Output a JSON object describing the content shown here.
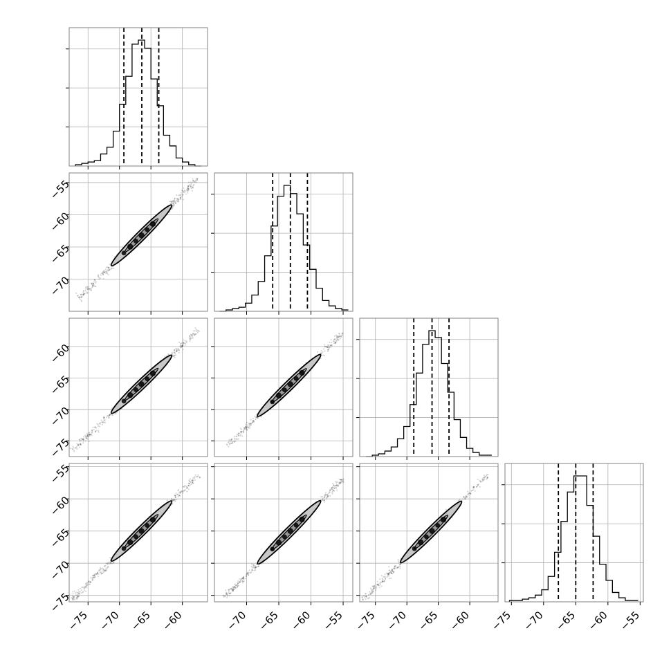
{
  "colors": {
    "ink": "#000000",
    "grid": "#b0b0b0",
    "frame": "#808080",
    "background": "#ffffff"
  },
  "chart_data": {
    "type": "corner",
    "title": "",
    "grid": true,
    "parameters": [
      {
        "index": 0,
        "range": [
          -78,
          -56
        ],
        "ticks": [
          -75,
          -70,
          -65,
          -60
        ],
        "tick_labels": [
          "−75",
          "−70",
          "−65",
          "−60"
        ],
        "quantiles": [
          -69.3,
          -66.45,
          -63.75
        ]
      },
      {
        "index": 1,
        "range": [
          -75,
          -53.5
        ],
        "ticks": [
          -70,
          -65,
          -60,
          -55
        ],
        "tick_labels": [
          "−70",
          "−65",
          "−60",
          "−55"
        ],
        "quantiles": [
          -65.95,
          -63.2,
          -60.55
        ]
      },
      {
        "index": 2,
        "range": [
          -77.5,
          -55.5
        ],
        "ticks": [
          -75,
          -70,
          -65,
          -60
        ],
        "tick_labels": [
          "−75",
          "−70",
          "−65",
          "−60"
        ],
        "quantiles": [
          -68.9,
          -66.0,
          -63.3
        ]
      },
      {
        "index": 3,
        "range": [
          -76,
          -54.5
        ],
        "ticks": [
          -75,
          -70,
          -65,
          -60,
          -55
        ],
        "tick_labels": [
          "−75",
          "−70",
          "−65",
          "−60",
          "−55"
        ],
        "quantiles": [
          -67.7,
          -65.0,
          -62.3
        ]
      }
    ],
    "histograms": [
      {
        "param": 0,
        "bins": [
          -77,
          -76,
          -75,
          -74,
          -73,
          -72,
          -71,
          -70,
          -69,
          -68,
          -67,
          -66,
          -65,
          -64,
          -63,
          -62,
          -61,
          -60,
          -59,
          -58
        ],
        "counts": [
          1,
          2,
          3,
          4,
          9,
          14,
          26,
          46,
          67,
          91,
          94,
          88,
          65,
          45,
          23,
          15,
          6,
          3,
          1,
          0
        ]
      },
      {
        "param": 1,
        "bins": [
          -74.2,
          -73.2,
          -72.2,
          -71.2,
          -70.2,
          -69.2,
          -68.2,
          -67.2,
          -66.2,
          -65.2,
          -64.2,
          -63.2,
          -62.2,
          -61.2,
          -60.2,
          -59.2,
          -58.2,
          -57.2,
          -56.2,
          -55.2
        ],
        "counts": [
          0,
          1,
          2,
          3,
          6,
          12,
          22,
          41,
          63,
          85,
          93,
          87,
          72,
          49,
          31,
          17,
          8,
          4,
          2,
          1
        ]
      },
      {
        "param": 2,
        "bins": [
          -76.5,
          -75.5,
          -74.5,
          -73.5,
          -72.5,
          -71.5,
          -70.5,
          -69.5,
          -68.5,
          -67.5,
          -66.5,
          -65.5,
          -64.5,
          -63.5,
          -62.5,
          -61.5,
          -60.5,
          -59.5,
          -58.5,
          -57.5
        ],
        "counts": [
          0,
          1,
          2,
          4,
          7,
          13,
          22,
          38,
          61,
          82,
          92,
          87,
          68,
          47,
          27,
          14,
          6,
          3,
          1,
          1
        ]
      },
      {
        "param": 3,
        "bins": [
          -75.3,
          -74.3,
          -73.3,
          -72.3,
          -71.3,
          -70.3,
          -69.3,
          -68.3,
          -67.3,
          -66.3,
          -65.3,
          -64.3,
          -63.3,
          -62.3,
          -61.3,
          -60.3,
          -59.3,
          -58.3,
          -57.3,
          -56.3
        ],
        "counts": [
          1,
          1,
          2,
          3,
          5,
          9,
          19,
          37,
          60,
          82,
          94,
          94,
          72,
          49,
          28,
          16,
          7,
          3,
          1,
          1
        ]
      }
    ],
    "scatter_panels": [
      {
        "x_param": 0,
        "y_param": 1,
        "center": [
          -66.5,
          -63.2
        ],
        "slope": 0.98,
        "scatter": [
          -76.5,
          -57.5
        ],
        "contour": [
          -71.3,
          -61.7
        ]
      },
      {
        "x_param": 0,
        "y_param": 2,
        "center": [
          -66.5,
          -66.0
        ],
        "slope": 0.96,
        "scatter": [
          -77.5,
          -57.5
        ],
        "contour": [
          -71.3,
          -61.7
        ]
      },
      {
        "x_param": 1,
        "y_param": 2,
        "center": [
          -63.2,
          -66.0
        ],
        "slope": 1.0,
        "scatter": [
          -73.0,
          -55.0
        ],
        "contour": [
          -68.3,
          -58.5
        ]
      },
      {
        "x_param": 0,
        "y_param": 3,
        "center": [
          -66.5,
          -65.0
        ],
        "slope": 0.97,
        "scatter": [
          -77.5,
          -57.5
        ],
        "contour": [
          -71.3,
          -61.7
        ]
      },
      {
        "x_param": 1,
        "y_param": 3,
        "center": [
          -63.2,
          -65.0
        ],
        "slope": 1.0,
        "scatter": [
          -73.5,
          -55.0
        ],
        "contour": [
          -68.3,
          -58.5
        ]
      },
      {
        "x_param": 2,
        "y_param": 3,
        "center": [
          -66.0,
          -65.0
        ],
        "slope": 0.98,
        "scatter": [
          -77.0,
          -57.0
        ],
        "contour": [
          -71.0,
          -61.3
        ]
      }
    ]
  }
}
